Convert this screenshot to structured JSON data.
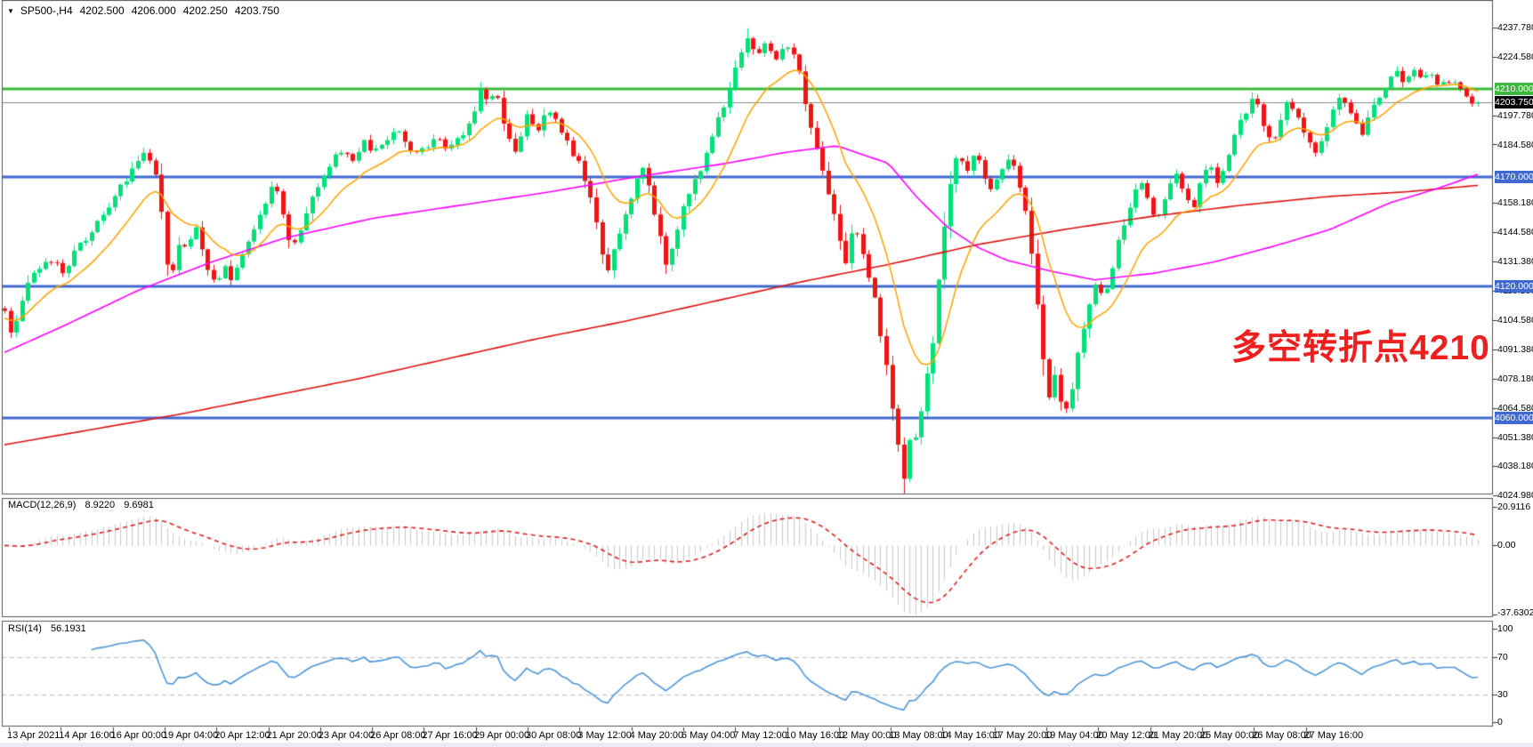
{
  "title_bar": {
    "dropdown_icon": "▼",
    "symbol_timeframe": "SP500-,H4",
    "open": "4202.500",
    "high": "4206.000",
    "low": "4202.250",
    "close": "4203.750"
  },
  "annotation": {
    "text": "多空转折点4210",
    "color": "#F01F1F"
  },
  "colors": {
    "candle_up": "#00E17A",
    "candle_down": "#EF1515",
    "level_green": "#3CB93C",
    "level_blue": "#4169D2",
    "current_line": "#8C8C8C",
    "current_badge": "#000000",
    "ma_fast": "#FFA200",
    "ma_mid": "#FF00FF",
    "ma_slow": "#DD1111",
    "macd_histogram": "#C9C9C9",
    "macd_signal": "#DE2020",
    "rsi_line": "#4D96D8",
    "rsi_level": "#BBBBBB",
    "frame": "#555555",
    "axis_text": "#000000"
  },
  "chart_data": {
    "type": "candlestick",
    "title": "SP500-,H4",
    "timeframe": "H4",
    "ohlc_display": {
      "open": 4202.5,
      "high": 4206.0,
      "low": 4202.25,
      "close": 4203.75
    },
    "last_close": 4203.75,
    "seed": 20210527,
    "candle_count": 255,
    "y_axis": {
      "min": 4024.98,
      "max": 4237.78,
      "tick_labels": [
        {
          "value": 4237.78,
          "text": "4237.780"
        },
        {
          "value": 4224.58,
          "text": "4224.580"
        },
        {
          "value": 4197.78,
          "text": "4197.780"
        },
        {
          "value": 4184.58,
          "text": "4184.580"
        },
        {
          "value": 4158.18,
          "text": "4158.180"
        },
        {
          "value": 4144.58,
          "text": "4144.580"
        },
        {
          "value": 4131.38,
          "text": "4131.380"
        },
        {
          "value": 4118.18,
          "text": "4118.180"
        },
        {
          "value": 4104.58,
          "text": "4104.580"
        },
        {
          "value": 4091.38,
          "text": "4091.380"
        },
        {
          "value": 4078.18,
          "text": "4078.180"
        },
        {
          "value": 4064.58,
          "text": "4064.580"
        },
        {
          "value": 4051.38,
          "text": "4051.380"
        },
        {
          "value": 4038.18,
          "text": "4038.180"
        },
        {
          "value": 4024.98,
          "text": "4024.980"
        }
      ]
    },
    "x_axis": {
      "labels": [
        "13 Apr 2021",
        "14 Apr 16:00",
        "16 Apr 00:00",
        "19 Apr 04:00",
        "20 Apr 12:00",
        "21 Apr 20:00",
        "23 Apr 04:00",
        "26 Apr 08:00",
        "27 Apr 16:00",
        "29 Apr 00:00",
        "30 Apr 08:00",
        "3 May 12:00",
        "4 May 20:00",
        "6 May 04:00",
        "7 May 12:00",
        "10 May 16:00",
        "12 May 00:00",
        "13 May 08:00",
        "14 May 16:00",
        "17 May 20:00",
        "19 May 04:00",
        "20 May 12:00",
        "21 May 20:00",
        "25 May 00:00",
        "26 May 08:00",
        "27 May 16:00"
      ]
    },
    "horizontal_lines": [
      {
        "price": 4210.0,
        "label": "4210.000",
        "style": "level_green",
        "width": 3,
        "badge": "level_green"
      },
      {
        "price": 4203.75,
        "label": "4203.750",
        "style": "current_line",
        "width": 1,
        "badge": "current_badge"
      },
      {
        "price": 4170.0,
        "label": "4170.000",
        "style": "level_blue",
        "width": 3,
        "badge": "level_blue"
      },
      {
        "price": 4120.0,
        "label": "4120.000",
        "style": "level_blue",
        "width": 3,
        "badge": "level_blue"
      },
      {
        "price": 4060.0,
        "label": "4060.000",
        "style": "level_blue",
        "width": 3,
        "badge": "level_blue"
      }
    ],
    "wick_extremes": {
      "lowest": 4025.3,
      "highest": 4237.5
    },
    "price_path": [
      [
        0,
        4110
      ],
      [
        0.005,
        4098
      ],
      [
        0.012,
        4116
      ],
      [
        0.022,
        4127
      ],
      [
        0.033,
        4133
      ],
      [
        0.04,
        4126
      ],
      [
        0.048,
        4136
      ],
      [
        0.06,
        4147
      ],
      [
        0.072,
        4158
      ],
      [
        0.085,
        4171
      ],
      [
        0.096,
        4181
      ],
      [
        0.101,
        4174
      ],
      [
        0.107,
        4152
      ],
      [
        0.112,
        4120
      ],
      [
        0.117,
        4140
      ],
      [
        0.124,
        4136
      ],
      [
        0.13,
        4147
      ],
      [
        0.136,
        4131
      ],
      [
        0.143,
        4120
      ],
      [
        0.149,
        4130
      ],
      [
        0.154,
        4122
      ],
      [
        0.16,
        4131
      ],
      [
        0.166,
        4142
      ],
      [
        0.172,
        4150
      ],
      [
        0.178,
        4160
      ],
      [
        0.184,
        4168
      ],
      [
        0.19,
        4150
      ],
      [
        0.195,
        4134
      ],
      [
        0.2,
        4146
      ],
      [
        0.206,
        4155
      ],
      [
        0.212,
        4165
      ],
      [
        0.22,
        4174
      ],
      [
        0.228,
        4182
      ],
      [
        0.236,
        4178
      ],
      [
        0.243,
        4186
      ],
      [
        0.25,
        4180
      ],
      [
        0.258,
        4186
      ],
      [
        0.266,
        4191
      ],
      [
        0.274,
        4184
      ],
      [
        0.282,
        4181
      ],
      [
        0.292,
        4187
      ],
      [
        0.3,
        4183
      ],
      [
        0.308,
        4188
      ],
      [
        0.316,
        4195
      ],
      [
        0.323,
        4211
      ],
      [
        0.328,
        4202
      ],
      [
        0.334,
        4208
      ],
      [
        0.34,
        4192
      ],
      [
        0.347,
        4182
      ],
      [
        0.354,
        4197
      ],
      [
        0.361,
        4190
      ],
      [
        0.368,
        4200
      ],
      [
        0.375,
        4196
      ],
      [
        0.382,
        4186
      ],
      [
        0.39,
        4175
      ],
      [
        0.398,
        4158
      ],
      [
        0.404,
        4140
      ],
      [
        0.409,
        4128
      ],
      [
        0.415,
        4141
      ],
      [
        0.422,
        4154
      ],
      [
        0.429,
        4168
      ],
      [
        0.434,
        4177
      ],
      [
        0.439,
        4160
      ],
      [
        0.444,
        4145
      ],
      [
        0.449,
        4129
      ],
      [
        0.454,
        4140
      ],
      [
        0.46,
        4154
      ],
      [
        0.468,
        4167
      ],
      [
        0.476,
        4180
      ],
      [
        0.484,
        4195
      ],
      [
        0.492,
        4211
      ],
      [
        0.499,
        4227
      ],
      [
        0.505,
        4234
      ],
      [
        0.511,
        4224
      ],
      [
        0.517,
        4231
      ],
      [
        0.523,
        4222
      ],
      [
        0.529,
        4229
      ],
      [
        0.536,
        4226
      ],
      [
        0.543,
        4205
      ],
      [
        0.549,
        4188
      ],
      [
        0.555,
        4172
      ],
      [
        0.561,
        4158
      ],
      [
        0.566,
        4145
      ],
      [
        0.571,
        4131
      ],
      [
        0.576,
        4148
      ],
      [
        0.581,
        4138
      ],
      [
        0.586,
        4126
      ],
      [
        0.591,
        4112
      ],
      [
        0.596,
        4092
      ],
      [
        0.601,
        4072
      ],
      [
        0.606,
        4048
      ],
      [
        0.611,
        4032
      ],
      [
        0.615,
        4056
      ],
      [
        0.619,
        4048
      ],
      [
        0.624,
        4070
      ],
      [
        0.63,
        4096
      ],
      [
        0.636,
        4136
      ],
      [
        0.641,
        4166
      ],
      [
        0.647,
        4180
      ],
      [
        0.653,
        4172
      ],
      [
        0.659,
        4180
      ],
      [
        0.665,
        4171
      ],
      [
        0.67,
        4162
      ],
      [
        0.676,
        4172
      ],
      [
        0.682,
        4180
      ],
      [
        0.688,
        4169
      ],
      [
        0.693,
        4154
      ],
      [
        0.697,
        4136
      ],
      [
        0.701,
        4112
      ],
      [
        0.705,
        4085
      ],
      [
        0.709,
        4070
      ],
      [
        0.713,
        4079
      ],
      [
        0.717,
        4068
      ],
      [
        0.721,
        4062
      ],
      [
        0.725,
        4076
      ],
      [
        0.729,
        4092
      ],
      [
        0.734,
        4108
      ],
      [
        0.74,
        4122
      ],
      [
        0.746,
        4114
      ],
      [
        0.752,
        4130
      ],
      [
        0.758,
        4146
      ],
      [
        0.764,
        4158
      ],
      [
        0.77,
        4168
      ],
      [
        0.776,
        4159
      ],
      [
        0.782,
        4149
      ],
      [
        0.788,
        4162
      ],
      [
        0.794,
        4172
      ],
      [
        0.8,
        4163
      ],
      [
        0.806,
        4155
      ],
      [
        0.812,
        4167
      ],
      [
        0.818,
        4177
      ],
      [
        0.824,
        4167
      ],
      [
        0.83,
        4177
      ],
      [
        0.836,
        4190
      ],
      [
        0.842,
        4200
      ],
      [
        0.848,
        4206
      ],
      [
        0.854,
        4195
      ],
      [
        0.86,
        4186
      ],
      [
        0.866,
        4196
      ],
      [
        0.872,
        4205
      ],
      [
        0.878,
        4196
      ],
      [
        0.884,
        4187
      ],
      [
        0.89,
        4179
      ],
      [
        0.896,
        4190
      ],
      [
        0.902,
        4200
      ],
      [
        0.908,
        4207
      ],
      [
        0.914,
        4198
      ],
      [
        0.92,
        4188
      ],
      [
        0.926,
        4197
      ],
      [
        0.932,
        4205
      ],
      [
        0.938,
        4211
      ],
      [
        0.944,
        4217
      ],
      [
        0.95,
        4212
      ],
      [
        0.956,
        4218
      ],
      [
        0.962,
        4213
      ],
      [
        0.968,
        4216
      ],
      [
        0.974,
        4211
      ],
      [
        0.98,
        4214
      ],
      [
        0.986,
        4210
      ],
      [
        0.992,
        4206
      ],
      [
        1,
        4203.75
      ]
    ],
    "moving_averages": {
      "fast": {
        "name": "fast-ma",
        "type": "ema",
        "period": 13,
        "start": 4105
      },
      "mid": {
        "name": "mid-ma",
        "path": [
          [
            0,
            4090
          ],
          [
            0.04,
            4102
          ],
          [
            0.09,
            4118
          ],
          [
            0.14,
            4131
          ],
          [
            0.19,
            4142
          ],
          [
            0.25,
            4151
          ],
          [
            0.31,
            4157
          ],
          [
            0.37,
            4163
          ],
          [
            0.43,
            4170
          ],
          [
            0.49,
            4176
          ],
          [
            0.53,
            4181
          ],
          [
            0.565,
            4184
          ],
          [
            0.6,
            4176
          ],
          [
            0.62,
            4160
          ],
          [
            0.64,
            4147
          ],
          [
            0.66,
            4138
          ],
          [
            0.68,
            4132
          ],
          [
            0.71,
            4127
          ],
          [
            0.74,
            4123
          ],
          [
            0.78,
            4126
          ],
          [
            0.82,
            4131
          ],
          [
            0.86,
            4138
          ],
          [
            0.9,
            4146
          ],
          [
            0.94,
            4158
          ],
          [
            0.97,
            4164
          ],
          [
            1,
            4171
          ]
        ]
      },
      "slow": {
        "name": "slow-ma",
        "path": [
          [
            0,
            4048
          ],
          [
            0.12,
            4062
          ],
          [
            0.24,
            4078
          ],
          [
            0.36,
            4096
          ],
          [
            0.42,
            4104
          ],
          [
            0.48,
            4113
          ],
          [
            0.54,
            4122
          ],
          [
            0.6,
            4130
          ],
          [
            0.66,
            4139
          ],
          [
            0.72,
            4146
          ],
          [
            0.78,
            4152
          ],
          [
            0.84,
            4157
          ],
          [
            0.9,
            4161
          ],
          [
            0.95,
            4163
          ],
          [
            1,
            4166
          ]
        ]
      }
    },
    "macd": {
      "label": "MACD(12,26,9)",
      "fast_period": 12,
      "slow_period": 26,
      "signal_period": 9,
      "macd_value": "8.9220",
      "signal_value": "9.6981",
      "axis": {
        "max": 20.9116,
        "min": -37.6302,
        "max_label": "20.9116",
        "zero_label": "0.00",
        "min_label": "-37.6302"
      }
    },
    "rsi": {
      "label": "RSI(14)",
      "period": 14,
      "value": "56.1931",
      "levels": [
        70,
        30
      ],
      "axis_labels": [
        {
          "value": 100,
          "text": "100"
        },
        {
          "value": 70,
          "text": "70"
        },
        {
          "value": 30,
          "text": "30"
        },
        {
          "value": 0,
          "text": "0"
        }
      ]
    }
  }
}
